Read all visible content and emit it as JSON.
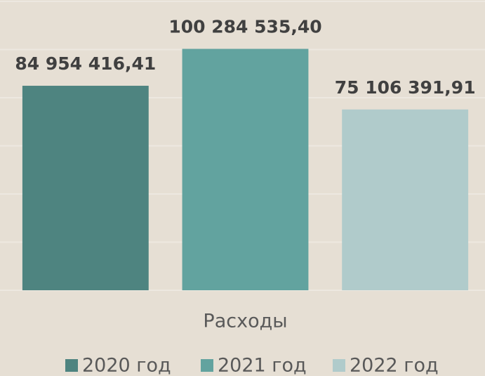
{
  "chart_data": {
    "type": "bar",
    "categories": [
      "Расходы"
    ],
    "series": [
      {
        "name": "2020 год",
        "color": "#4e8480",
        "values": [
          84954416.41
        ],
        "value_labels": [
          "84 954 416,41"
        ]
      },
      {
        "name": "2021 год",
        "color": "#62a39f",
        "values": [
          100284535.4
        ],
        "value_labels": [
          "100 284 535,40"
        ]
      },
      {
        "name": "2022 год",
        "color": "#b0cbcb",
        "values": [
          75106391.91
        ],
        "value_labels": [
          "75 106 391,91"
        ]
      }
    ],
    "ylim": [
      0,
      120000000
    ],
    "yticks": [
      0,
      20000000,
      40000000,
      60000000,
      80000000,
      100000000,
      120000000
    ],
    "grid": true,
    "legend": "bottom"
  }
}
